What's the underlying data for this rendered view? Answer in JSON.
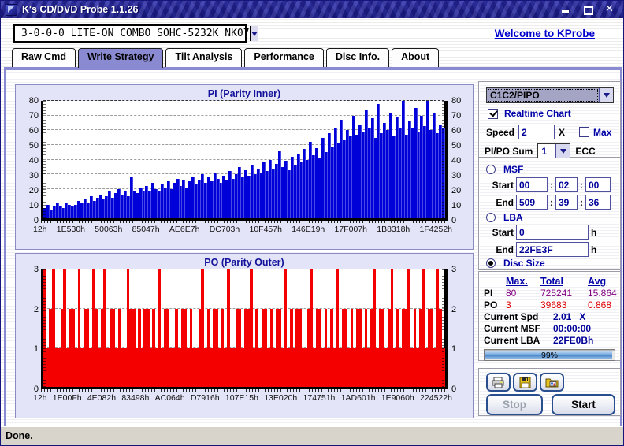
{
  "window": {
    "title": "K's CD/DVD Probe 1.1.26",
    "status": "Done.",
    "close_glyph": "✕"
  },
  "header": {
    "device": "3-0-0-0 LITE-ON COMBO SOHC-5232K NK07",
    "welcome_link": "Welcome to KProbe"
  },
  "tabs": [
    {
      "label": "Raw Cmd",
      "active": false
    },
    {
      "label": "Write Strategy",
      "active": true
    },
    {
      "label": "Tilt Analysis",
      "active": false
    },
    {
      "label": "Performance",
      "active": false
    },
    {
      "label": "Disc Info.",
      "active": false
    },
    {
      "label": "About",
      "active": false
    }
  ],
  "controls": {
    "mode_select": "C1C2/PIPO",
    "realtime": {
      "label": "Realtime Chart",
      "checked": true
    },
    "speed": {
      "label": "Speed",
      "value": "2",
      "unit": "X"
    },
    "max": {
      "label": "Max",
      "checked": false
    },
    "pipo_sum": {
      "label": "PI/PO Sum",
      "value": "1",
      "suffix": "ECC"
    },
    "msf": {
      "label": "MSF",
      "start_label": "Start",
      "end_label": "End",
      "separator": ":",
      "start": [
        "00",
        "02",
        "00"
      ],
      "end": [
        "509",
        "39",
        "36"
      ]
    },
    "lba": {
      "label": "LBA",
      "start_label": "Start",
      "end_label": "End",
      "start": "0",
      "end": "22FE3F",
      "unit": "h"
    },
    "disc_size": {
      "label": "Disc Size",
      "selected": true
    }
  },
  "stats": {
    "headers": [
      "Max.",
      "Total",
      "Avg"
    ],
    "rows": [
      {
        "name": "PI",
        "max": "80",
        "total": "725241",
        "avg": "15.864",
        "color": "#800080"
      },
      {
        "name": "PO",
        "max": "3",
        "total": "39683",
        "avg": "0.868",
        "color": "#dd0000"
      }
    ],
    "current": [
      {
        "label": "Current Spd",
        "value": "2.01   X"
      },
      {
        "label": "Current MSF",
        "value": "00:00:00"
      },
      {
        "label": "Current LBA",
        "value": "22FE0Bh"
      }
    ],
    "progress": {
      "percent": 99,
      "label": "99%"
    }
  },
  "actions": {
    "stop": "Stop",
    "start": "Start",
    "icon_buttons": [
      "printer-icon",
      "save-icon",
      "image-folder-icon"
    ]
  },
  "colors": {
    "pi_bar": "#0000d8",
    "po_bar": "#f40000",
    "accent_purple": "#8a8ad2",
    "titlebar_blue": "#1d1d8c",
    "link_blue": "#0000cc"
  },
  "chart_data": [
    {
      "type": "bar",
      "title": "PI (Parity Inner)",
      "color": "#0000d8",
      "ylim": [
        0,
        80
      ],
      "yticks": [
        0,
        10,
        20,
        30,
        40,
        50,
        60,
        70,
        80
      ],
      "grid": true,
      "x_tick_labels": [
        "12h",
        "1E530h",
        "50063h",
        "85047h",
        "AE6E7h",
        "DC703h",
        "10F457h",
        "146E19h",
        "17F007h",
        "1B8318h",
        "1F4252h"
      ],
      "values": [
        7,
        9,
        6,
        8,
        10,
        8,
        7,
        11,
        9,
        8,
        9,
        12,
        10,
        13,
        11,
        15,
        12,
        14,
        16,
        13,
        15,
        18,
        14,
        17,
        20,
        16,
        19,
        15,
        28,
        18,
        17,
        21,
        18,
        22,
        19,
        24,
        20,
        18,
        23,
        21,
        25,
        20,
        24,
        27,
        22,
        26,
        21,
        25,
        28,
        23,
        26,
        30,
        24,
        28,
        25,
        31,
        27,
        24,
        29,
        26,
        32,
        27,
        30,
        35,
        28,
        33,
        29,
        36,
        30,
        34,
        31,
        38,
        32,
        40,
        34,
        37,
        46,
        35,
        39,
        33,
        42,
        36,
        44,
        38,
        47,
        40,
        52,
        43,
        48,
        41,
        55,
        45,
        58,
        49,
        62,
        51,
        67,
        53,
        60,
        56,
        70,
        57,
        64,
        59,
        74,
        61,
        68,
        55,
        78,
        58,
        65,
        60,
        72,
        56,
        69,
        62,
        80,
        57,
        66,
        61,
        75,
        59,
        70,
        63,
        80,
        60,
        72,
        58,
        64,
        62
      ]
    },
    {
      "type": "bar",
      "title": "PO (Parity Outer)",
      "color": "#f40000",
      "ylim": [
        0,
        3
      ],
      "yticks": [
        0,
        1,
        2,
        3
      ],
      "grid": true,
      "x_tick_labels": [
        "12h",
        "1E00Fh",
        "4E082h",
        "83498h",
        "AC064h",
        "D7916h",
        "107E15h",
        "13E020h",
        "174751h",
        "1AD601h",
        "1E9060h",
        "224522h"
      ],
      "values": [
        3,
        1,
        2,
        3,
        1,
        1,
        2,
        3,
        1,
        2,
        2,
        1,
        3,
        1,
        2,
        2,
        1,
        3,
        2,
        1,
        2,
        3,
        1,
        2,
        2,
        1,
        2,
        1,
        1,
        3,
        2,
        2,
        1,
        2,
        1,
        2,
        2,
        1,
        2,
        1,
        3,
        1,
        2,
        2,
        1,
        1,
        2,
        1,
        2,
        2,
        1,
        2,
        1,
        1,
        2,
        3,
        1,
        2,
        1,
        2,
        2,
        1,
        2,
        1,
        3,
        1,
        1,
        2,
        2,
        1,
        2,
        2,
        3,
        1,
        2,
        1,
        2,
        2,
        1,
        2,
        1,
        2,
        2,
        1,
        3,
        1,
        2,
        1,
        2,
        2,
        1,
        1,
        2,
        3,
        1,
        2,
        2,
        1,
        2,
        1,
        2,
        1,
        3,
        1,
        2,
        2,
        1,
        2,
        1,
        2,
        2,
        1,
        2,
        1,
        2,
        3,
        1,
        2,
        2,
        1,
        2,
        3,
        1,
        2,
        1,
        2,
        2,
        3,
        1,
        2,
        1,
        2,
        3,
        1,
        2,
        2,
        1,
        3,
        2,
        1
      ]
    }
  ]
}
